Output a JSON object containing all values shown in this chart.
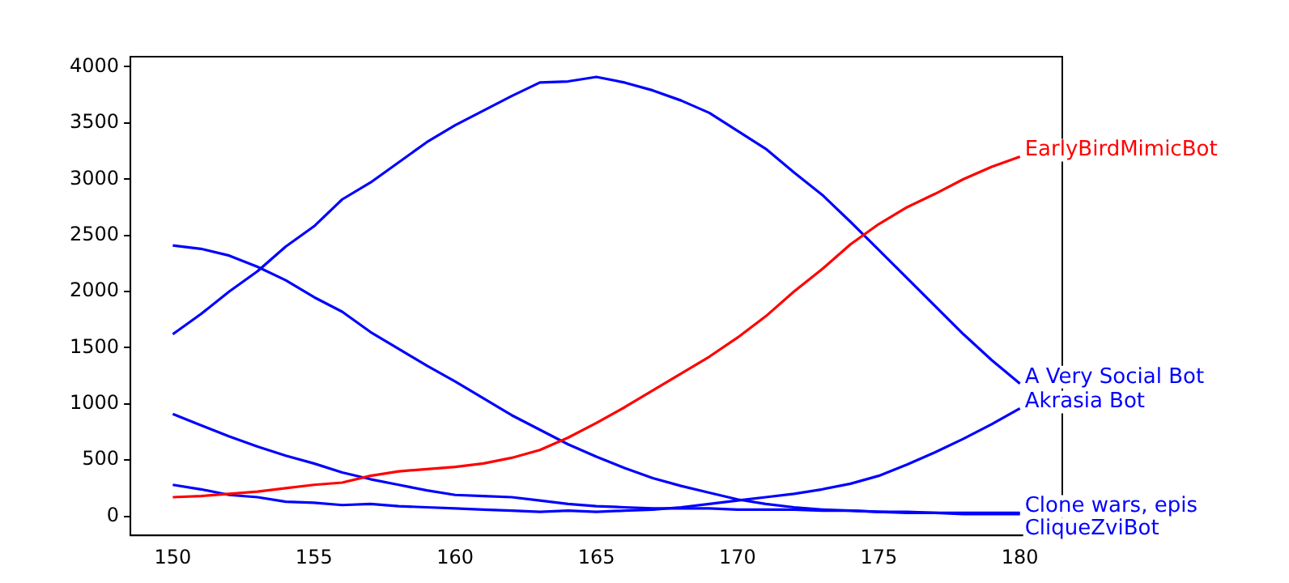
{
  "chart_data": {
    "type": "line",
    "x": [
      150,
      151,
      152,
      153,
      154,
      155,
      156,
      157,
      158,
      159,
      160,
      161,
      162,
      163,
      164,
      165,
      166,
      167,
      168,
      169,
      170,
      171,
      172,
      173,
      174,
      175,
      176,
      177,
      178,
      179,
      180
    ],
    "series": [
      {
        "name": "EarlyBirdMimicBot",
        "color": "#ff0000",
        "values": [
          170,
          180,
          200,
          220,
          250,
          280,
          300,
          360,
          400,
          420,
          440,
          470,
          520,
          590,
          700,
          830,
          970,
          1120,
          1270,
          1420,
          1590,
          1780,
          2000,
          2200,
          2420,
          2600,
          2750,
          2870,
          3000,
          3110,
          3200
        ]
      },
      {
        "name": "A Very Social Bot",
        "color": "#0000ff",
        "values": [
          1620,
          1800,
          2000,
          2180,
          2400,
          2580,
          2820,
          2970,
          3150,
          3330,
          3480,
          3610,
          3740,
          3860,
          3870,
          3910,
          3860,
          3790,
          3700,
          3590,
          3430,
          3270,
          3060,
          2860,
          2620,
          2370,
          2120,
          1870,
          1620,
          1390,
          1180
        ]
      },
      {
        "name": "Akrasia Bot",
        "color": "#0000ff",
        "values": [
          280,
          240,
          190,
          170,
          130,
          120,
          100,
          110,
          90,
          80,
          70,
          60,
          50,
          40,
          50,
          40,
          50,
          60,
          80,
          110,
          140,
          170,
          200,
          240,
          290,
          360,
          460,
          570,
          690,
          820,
          960
        ]
      },
      {
        "name": "CliqueZviBot",
        "color": "#0000ff",
        "values": [
          2410,
          2380,
          2320,
          2220,
          2100,
          1950,
          1820,
          1640,
          1490,
          1340,
          1200,
          1050,
          900,
          770,
          640,
          530,
          430,
          340,
          270,
          210,
          150,
          110,
          80,
          60,
          50,
          40,
          30,
          30,
          20,
          20,
          20
        ]
      },
      {
        "name": "Clone wars, epis",
        "color": "#0000ff",
        "values": [
          910,
          810,
          710,
          620,
          540,
          470,
          390,
          330,
          280,
          230,
          190,
          180,
          170,
          140,
          110,
          90,
          80,
          70,
          70,
          70,
          60,
          60,
          60,
          50,
          50,
          40,
          40,
          30,
          30,
          30,
          30
        ]
      }
    ],
    "xlim": [
      148.5,
      181.5
    ],
    "xticks": [
      150,
      155,
      160,
      165,
      170,
      175,
      180
    ],
    "ylim": [
      -170,
      4090
    ],
    "yticks": [
      0,
      500,
      1000,
      1500,
      2000,
      2500,
      3000,
      3500,
      4000
    ],
    "grid": false,
    "legend": false,
    "marker": "none",
    "line_style": "solid"
  }
}
